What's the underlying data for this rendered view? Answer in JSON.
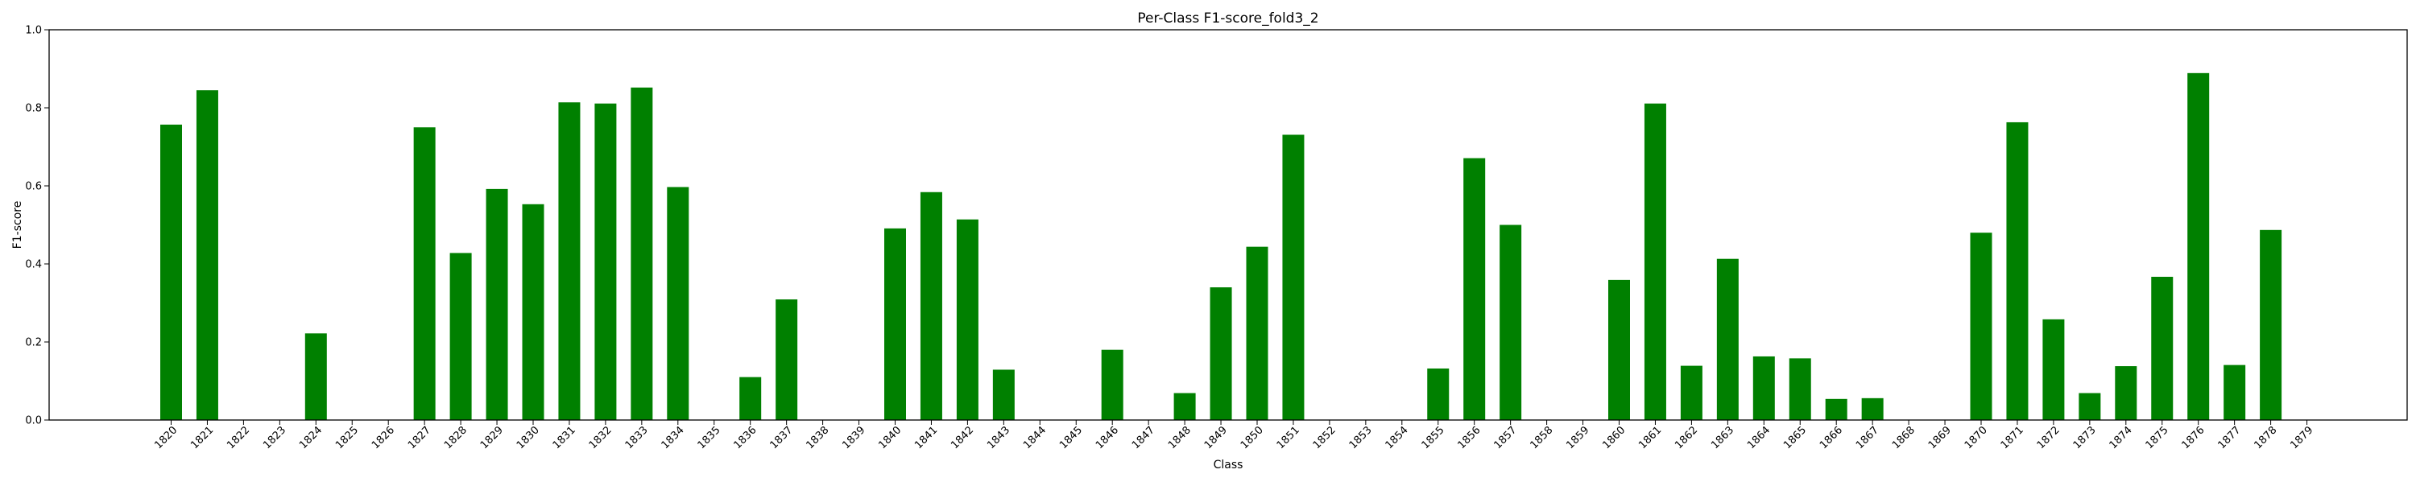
{
  "chart_data": {
    "type": "bar",
    "title": "Per-Class F1-score_fold3_2",
    "xlabel": "Class",
    "ylabel": "F1-score",
    "ylim": [
      0,
      1.0
    ],
    "yticks": [
      "0.0",
      "0.2",
      "0.4",
      "0.6",
      "0.8",
      "1.0"
    ],
    "grid": false,
    "bar_color": "#008000",
    "categories": [
      "1820",
      "1821",
      "1822",
      "1823",
      "1824",
      "1825",
      "1826",
      "1827",
      "1828",
      "1829",
      "1830",
      "1831",
      "1832",
      "1833",
      "1834",
      "1835",
      "1836",
      "1837",
      "1838",
      "1839",
      "1840",
      "1841",
      "1842",
      "1843",
      "1844",
      "1845",
      "1846",
      "1847",
      "1848",
      "1849",
      "1850",
      "1851",
      "1852",
      "1853",
      "1854",
      "1855",
      "1856",
      "1857",
      "1858",
      "1859",
      "1860",
      "1861",
      "1862",
      "1863",
      "1864",
      "1865",
      "1866",
      "1867",
      "1868",
      "1869",
      "1870",
      "1871",
      "1872",
      "1873",
      "1874",
      "1875",
      "1876",
      "1877",
      "1878",
      "1879"
    ],
    "values": [
      0.757,
      0.845,
      0,
      0,
      0.222,
      0,
      0,
      0.75,
      0.428,
      0.592,
      0.553,
      0.814,
      0.811,
      0.852,
      0.597,
      0,
      0.11,
      0.309,
      0,
      0,
      0.491,
      0.584,
      0.514,
      0.129,
      0,
      0,
      0.18,
      0,
      0.069,
      0.34,
      0.444,
      0.731,
      0,
      0,
      0,
      0.132,
      0.671,
      0.5,
      0,
      0,
      0.359,
      0.811,
      0.139,
      0.413,
      0.163,
      0.158,
      0.054,
      0.056,
      0,
      0,
      0.48,
      0.763,
      0.258,
      0.069,
      0.138,
      0.367,
      0.889,
      0.141,
      0.487,
      0
    ]
  }
}
